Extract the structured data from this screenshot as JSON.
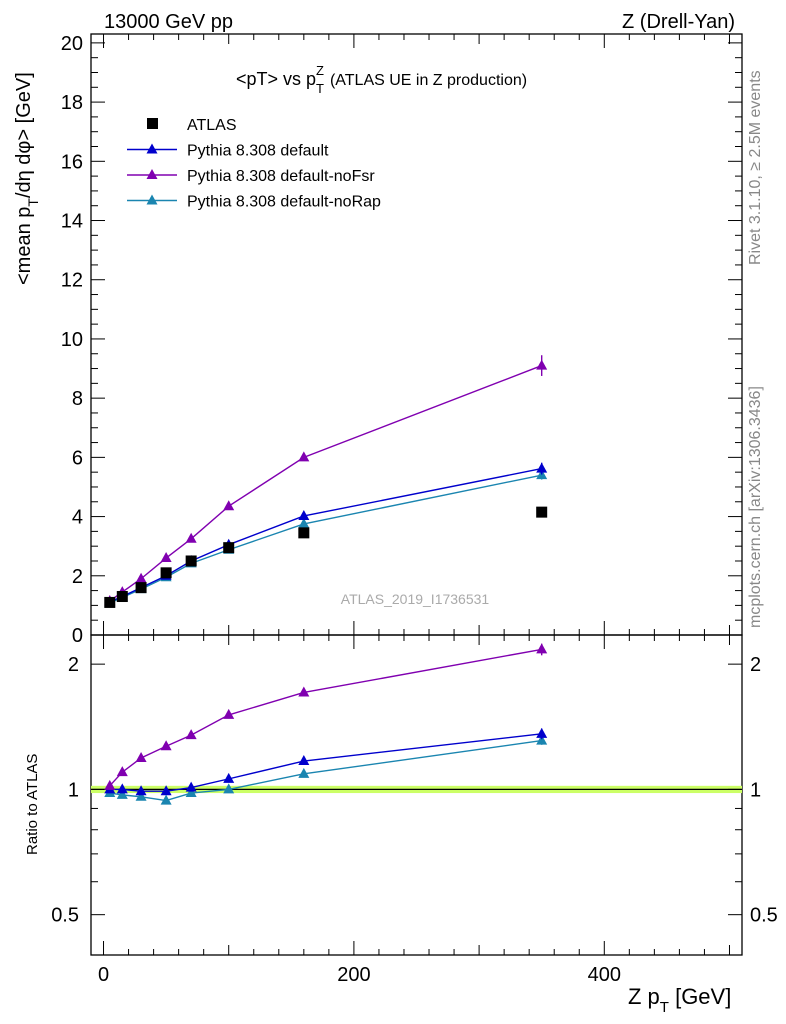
{
  "header": {
    "left": "13000 GeV pp",
    "right": "Z (Drell-Yan)"
  },
  "plot_title": {
    "main": "<pT> vs p",
    "sup": "Z",
    "sub": "T",
    "rest": "(ATLAS UE in Z production)"
  },
  "side_labels": {
    "rivet": "Rivet 3.1.10, ≥ 2.5M events",
    "mcplots": "mcplots.cern.ch [arXiv:1306.3436]"
  },
  "watermark": "ATLAS_2019_I1736531",
  "y_axis_main": {
    "pre": "<mean p",
    "sub": "T",
    "post": "/dη dφ> [GeV]"
  },
  "y_axis_ratio": "Ratio to ATLAS",
  "x_axis": {
    "pre": "Z p",
    "sub": "T",
    "post": " [GeV]"
  },
  "colors": {
    "data": "#000000",
    "default": "#0000cc",
    "noFsr": "#8000b0",
    "noRap": "#1a85b0",
    "band": "#ccff66"
  },
  "chart_data": [
    {
      "type": "line",
      "panel": "main",
      "xlim": [
        -10,
        510
      ],
      "ylim": [
        0,
        20.3
      ],
      "y_ticks": [
        0,
        2,
        4,
        6,
        8,
        10,
        12,
        14,
        16,
        18,
        20
      ],
      "y_tick_labels": [
        "0",
        "2",
        "4",
        "6",
        "8",
        "10",
        "12",
        "14",
        "16",
        "18",
        "20"
      ],
      "x_ticks": [
        0,
        200,
        400
      ],
      "legend_position": "top-left",
      "series": [
        {
          "name": "ATLAS",
          "key": "data",
          "marker": "square",
          "x": [
            5,
            15,
            30,
            50,
            70,
            100,
            160,
            350
          ],
          "y": [
            1.1,
            1.3,
            1.6,
            2.1,
            2.5,
            2.95,
            3.45,
            4.15
          ],
          "err": [
            0.05,
            0.05,
            0.05,
            0.08,
            0.08,
            0.1,
            0.1,
            0.15
          ]
        },
        {
          "name": "Pythia 8.308 default",
          "key": "default",
          "marker": "triangle",
          "x": [
            5,
            15,
            30,
            50,
            70,
            100,
            160,
            350
          ],
          "y": [
            1.12,
            1.3,
            1.6,
            2.0,
            2.5,
            3.05,
            4.02,
            5.62
          ],
          "err": [
            0.02,
            0.02,
            0.03,
            0.04,
            0.05,
            0.06,
            0.08,
            0.2
          ]
        },
        {
          "name": "Pythia 8.308 default-noFsr",
          "key": "noFsr",
          "marker": "triangle",
          "x": [
            5,
            15,
            30,
            50,
            70,
            100,
            160,
            350
          ],
          "y": [
            1.15,
            1.45,
            1.9,
            2.6,
            3.25,
            4.35,
            6.0,
            9.1
          ],
          "err": [
            0.02,
            0.02,
            0.03,
            0.04,
            0.06,
            0.08,
            0.1,
            0.35
          ]
        },
        {
          "name": "Pythia 8.308 default-noRap",
          "key": "noRap",
          "marker": "triangle",
          "x": [
            5,
            15,
            30,
            50,
            70,
            100,
            160,
            350
          ],
          "y": [
            1.08,
            1.27,
            1.55,
            1.95,
            2.42,
            2.88,
            3.75,
            5.4
          ],
          "err": [
            0.02,
            0.02,
            0.03,
            0.04,
            0.05,
            0.06,
            0.08,
            0.15
          ]
        }
      ]
    },
    {
      "type": "line",
      "panel": "ratio",
      "xlim": [
        -10,
        510
      ],
      "ylim": [
        0.4,
        2.35
      ],
      "scale": "log",
      "y_ticks": [
        0.5,
        1,
        2
      ],
      "y_tick_labels": [
        "0.5",
        "1",
        "2"
      ],
      "x_ticks": [
        0,
        200,
        400
      ],
      "x_tick_labels": [
        "0",
        "200",
        "400"
      ],
      "band": {
        "center": 1.0,
        "half_width": 0.02
      },
      "series": [
        {
          "key": "default",
          "marker": "triangle",
          "x": [
            5,
            15,
            30,
            50,
            70,
            100,
            160,
            350
          ],
          "y": [
            1.0,
            1.0,
            0.99,
            0.99,
            1.01,
            1.06,
            1.17,
            1.36
          ],
          "err": [
            0,
            0,
            0,
            0,
            0,
            0,
            0,
            0.04
          ]
        },
        {
          "key": "noFsr",
          "marker": "triangle",
          "x": [
            5,
            15,
            30,
            50,
            70,
            100,
            160,
            350
          ],
          "y": [
            1.02,
            1.1,
            1.19,
            1.27,
            1.35,
            1.51,
            1.71,
            2.17
          ],
          "err": [
            0,
            0,
            0,
            0,
            0,
            0,
            0,
            0.07
          ]
        },
        {
          "key": "noRap",
          "marker": "triangle",
          "x": [
            5,
            15,
            30,
            50,
            70,
            100,
            160,
            350
          ],
          "y": [
            0.98,
            0.97,
            0.96,
            0.94,
            0.98,
            1.0,
            1.09,
            1.31
          ],
          "err": [
            0,
            0,
            0,
            0,
            0,
            0,
            0,
            0.03
          ]
        }
      ]
    }
  ]
}
